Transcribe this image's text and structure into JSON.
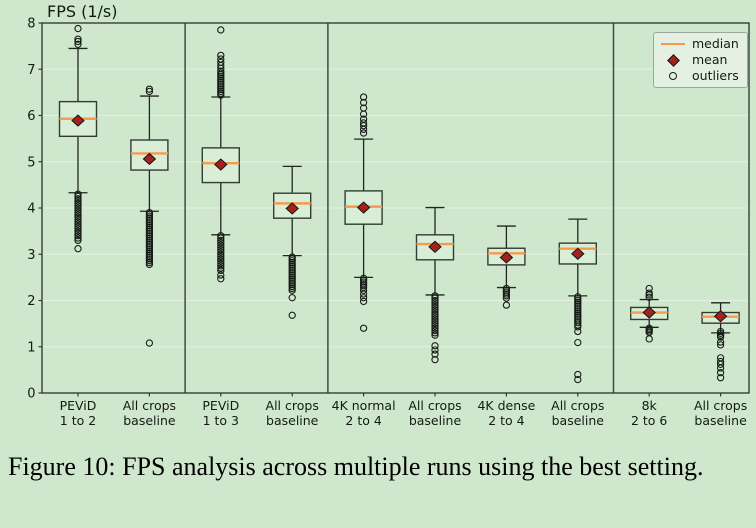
{
  "colors": {
    "background": "#cfe8cd",
    "box_fill": "#d9eed6",
    "box_edge": "#333c33",
    "whisker": "#20261f",
    "median": "#f89a4d",
    "mean_fill": "#a2231d",
    "mean_edge": "#151515",
    "outlier": "#171c17",
    "grid": "#e0efde",
    "spine": "#363c35",
    "separator": "#444a43",
    "legend_bg": "#e4f1e2",
    "legend_border": "#9aa899",
    "text": "#151a15",
    "caption": "#000000"
  },
  "caption": "Figure 10: FPS analysis across multiple runs using the best setting.",
  "chart_data": {
    "type": "boxplot",
    "title": "FPS (1/s)",
    "ylabel": "FPS (1/s)",
    "ylim": [
      0,
      8
    ],
    "yticks": [
      0,
      1,
      2,
      3,
      4,
      5,
      6,
      7,
      8
    ],
    "grid": "horizontal",
    "legend_position": "top-right",
    "legend": [
      {
        "symbol": "line",
        "label": "median"
      },
      {
        "symbol": "diamond",
        "label": "mean"
      },
      {
        "symbol": "circle",
        "label": "outliers"
      }
    ],
    "group_separators_after_box": [
      2,
      4,
      8
    ],
    "boxes": [
      {
        "label_line1": "PEViD",
        "label_line2": "1 to 2",
        "whisker_low": 4.33,
        "q1": 5.55,
        "median": 5.93,
        "q3": 6.3,
        "whisker_high": 7.45,
        "mean": 5.89,
        "outliers": [
          7.88,
          7.65,
          7.6,
          7.54,
          4.3,
          4.25,
          4.2,
          4.15,
          4.1,
          4.05,
          4.0,
          3.95,
          3.9,
          3.85,
          3.8,
          3.75,
          3.7,
          3.65,
          3.6,
          3.55,
          3.5,
          3.45,
          3.4,
          3.35,
          3.3,
          3.12
        ]
      },
      {
        "label_line1": "All crops",
        "label_line2": "baseline",
        "whisker_low": 3.93,
        "q1": 4.82,
        "median": 5.18,
        "q3": 5.47,
        "whisker_high": 6.42,
        "mean": 5.06,
        "outliers": [
          6.57,
          6.52,
          3.9,
          3.86,
          3.82,
          3.78,
          3.74,
          3.7,
          3.66,
          3.62,
          3.58,
          3.54,
          3.5,
          3.46,
          3.42,
          3.38,
          3.34,
          3.3,
          3.26,
          3.22,
          3.18,
          3.14,
          3.1,
          3.06,
          3.02,
          2.98,
          2.94,
          2.9,
          2.86,
          2.82,
          2.78,
          1.08
        ]
      },
      {
        "label_line1": "PEViD",
        "label_line2": "1 to 3",
        "whisker_low": 3.42,
        "q1": 4.55,
        "median": 4.97,
        "q3": 5.3,
        "whisker_high": 6.4,
        "mean": 4.94,
        "outliers": [
          7.85,
          7.3,
          7.22,
          7.15,
          7.08,
          7.02,
          6.96,
          6.92,
          6.88,
          6.84,
          6.8,
          6.76,
          6.72,
          6.68,
          6.64,
          6.6,
          6.56,
          6.52,
          6.48,
          6.44,
          3.4,
          3.35,
          3.3,
          3.25,
          3.2,
          3.15,
          3.1,
          3.05,
          3.0,
          2.95,
          2.9,
          2.85,
          2.8,
          2.75,
          2.7,
          2.65,
          2.55,
          2.47
        ]
      },
      {
        "label_line1": "All crops",
        "label_line2": "baseline",
        "whisker_low": 2.97,
        "q1": 3.78,
        "median": 4.1,
        "q3": 4.32,
        "whisker_high": 4.9,
        "mean": 3.99,
        "outliers": [
          2.94,
          2.9,
          2.86,
          2.82,
          2.78,
          2.74,
          2.7,
          2.66,
          2.62,
          2.58,
          2.54,
          2.5,
          2.46,
          2.42,
          2.38,
          2.34,
          2.3,
          2.26,
          2.22,
          2.06,
          1.68
        ]
      },
      {
        "label_line1": "4K normal",
        "label_line2": "2 to 4",
        "whisker_low": 2.5,
        "q1": 3.65,
        "median": 4.03,
        "q3": 4.37,
        "whisker_high": 5.49,
        "mean": 4.01,
        "outliers": [
          6.4,
          6.28,
          6.16,
          6.03,
          5.92,
          5.84,
          5.78,
          5.7,
          5.62,
          2.48,
          2.44,
          2.4,
          2.36,
          2.32,
          2.28,
          2.22,
          2.14,
          2.06,
          1.98,
          1.4
        ]
      },
      {
        "label_line1": "All crops",
        "label_line2": "baseline",
        "whisker_low": 2.12,
        "q1": 2.88,
        "median": 3.22,
        "q3": 3.42,
        "whisker_high": 4.01,
        "mean": 3.16,
        "outliers": [
          2.1,
          2.05,
          2.0,
          1.95,
          1.9,
          1.85,
          1.8,
          1.75,
          1.7,
          1.65,
          1.6,
          1.55,
          1.5,
          1.45,
          1.4,
          1.35,
          1.3,
          1.25,
          1.02,
          0.93,
          0.84,
          0.72
        ]
      },
      {
        "label_line1": "4K dense",
        "label_line2": "2 to 4",
        "whisker_low": 2.28,
        "q1": 2.77,
        "median": 3.02,
        "q3": 3.13,
        "whisker_high": 3.61,
        "mean": 2.93,
        "outliers": [
          2.26,
          2.22,
          2.18,
          2.14,
          2.1,
          2.05,
          1.9
        ]
      },
      {
        "label_line1": "All crops",
        "label_line2": "baseline",
        "whisker_low": 2.1,
        "q1": 2.79,
        "median": 3.12,
        "q3": 3.24,
        "whisker_high": 3.76,
        "mean": 3.01,
        "outliers": [
          2.08,
          2.04,
          2.0,
          1.96,
          1.92,
          1.88,
          1.84,
          1.8,
          1.76,
          1.72,
          1.68,
          1.64,
          1.6,
          1.56,
          1.52,
          1.47,
          1.43,
          1.33,
          1.09,
          0.4,
          0.29
        ]
      },
      {
        "label_line1": "8k",
        "label_line2": "2 to 6",
        "whisker_low": 1.42,
        "q1": 1.59,
        "median": 1.74,
        "q3": 1.85,
        "whisker_high": 2.02,
        "mean": 1.74,
        "outliers": [
          2.26,
          2.16,
          2.12,
          2.07,
          1.4,
          1.37,
          1.34,
          1.31,
          1.17
        ]
      },
      {
        "label_line1": "All crops",
        "label_line2": "baseline",
        "whisker_low": 1.3,
        "q1": 1.51,
        "median": 1.65,
        "q3": 1.74,
        "whisker_high": 1.95,
        "mean": 1.66,
        "outliers": [
          1.33,
          1.29,
          1.25,
          1.21,
          1.1,
          1.04,
          0.76,
          0.68,
          0.62,
          0.54,
          0.44,
          0.33
        ]
      }
    ]
  }
}
